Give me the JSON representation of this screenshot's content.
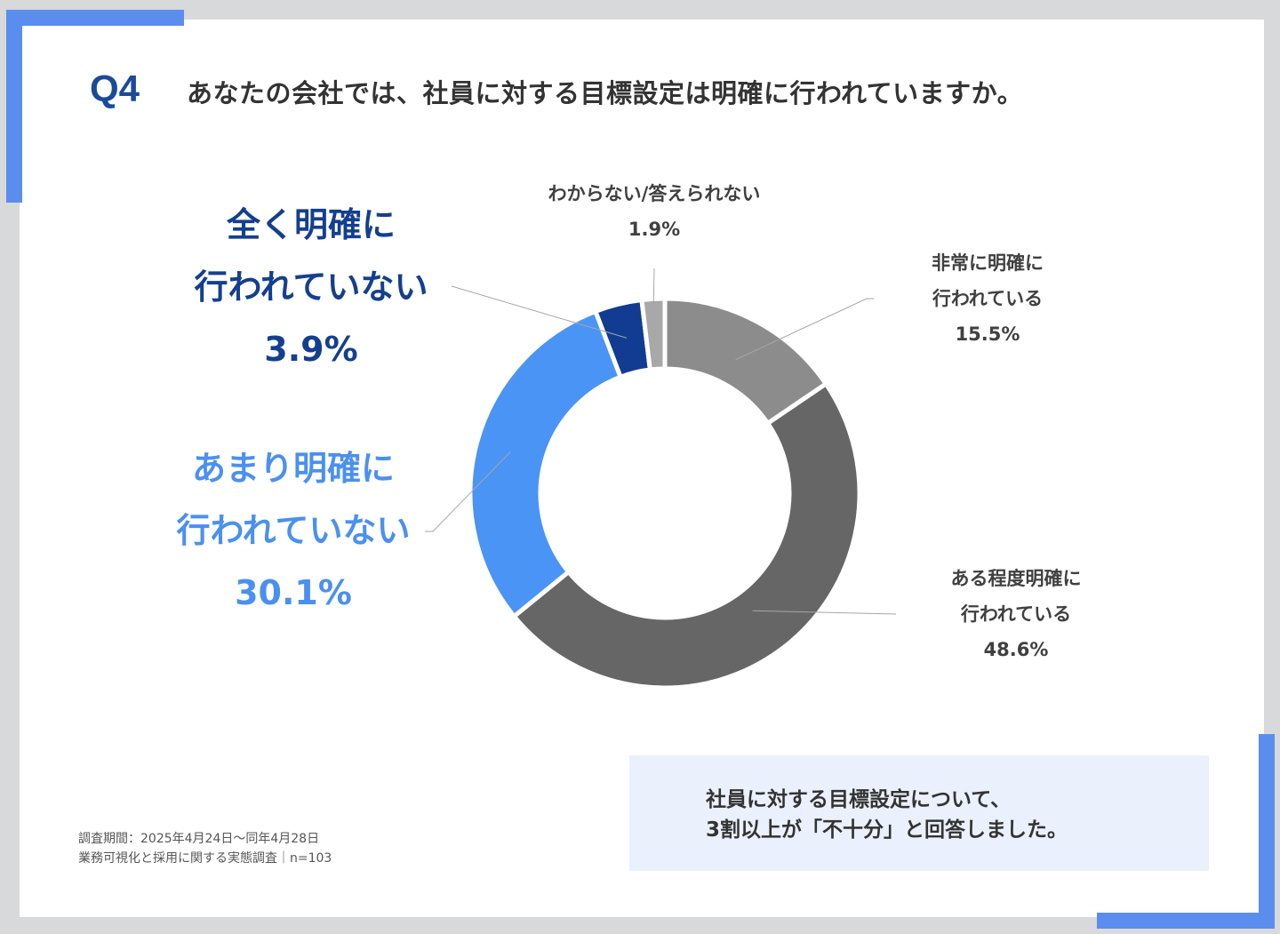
{
  "header": {
    "q_label": "Q4",
    "question": "あなたの会社では、社員に対する目標設定は明確に行われていますか。"
  },
  "labels": {
    "unclear_full": {
      "line1": "全く明確に",
      "line2": "行われていない",
      "pct": "3.9%"
    },
    "unclear_some": {
      "line1": "あまり明確に",
      "line2": "行われていない",
      "pct": "30.1%"
    },
    "unknown": {
      "line1": "わからない/答えられない",
      "pct": "1.9%"
    },
    "very_clear": {
      "line1": "非常に明確に",
      "line2": "行われている",
      "pct": "15.5%"
    },
    "somewhat_clear": {
      "line1": "ある程度明確に",
      "line2": "行われている",
      "pct": "48.6%"
    }
  },
  "footnote": {
    "line1": "調査期間：2025年4月24日〜同年4月28日",
    "line2": "業務可視化と採用に関する実態調査｜n=103"
  },
  "summary": {
    "line1": "社員に対する目標設定について、",
    "line2": "3割以上が「不十分」と回答しました。"
  },
  "colors": {
    "accent": "#5b8def",
    "title_blue": "#1b4a9a"
  },
  "chart_data": {
    "type": "pie",
    "variant": "donut",
    "title": "",
    "categories": [
      "非常に明確に行われている",
      "ある程度明確に行われている",
      "あまり明確に行われていない",
      "全く明確に行われていない",
      "わからない/答えられない"
    ],
    "values": [
      15.5,
      48.6,
      30.1,
      3.9,
      1.9
    ],
    "unit": "%",
    "colors": [
      "#8c8c8c",
      "#666666",
      "#4a94f5",
      "#123c91",
      "#a8a8a8"
    ],
    "start": "top, clockwise",
    "legend": "none (direct labels)"
  }
}
